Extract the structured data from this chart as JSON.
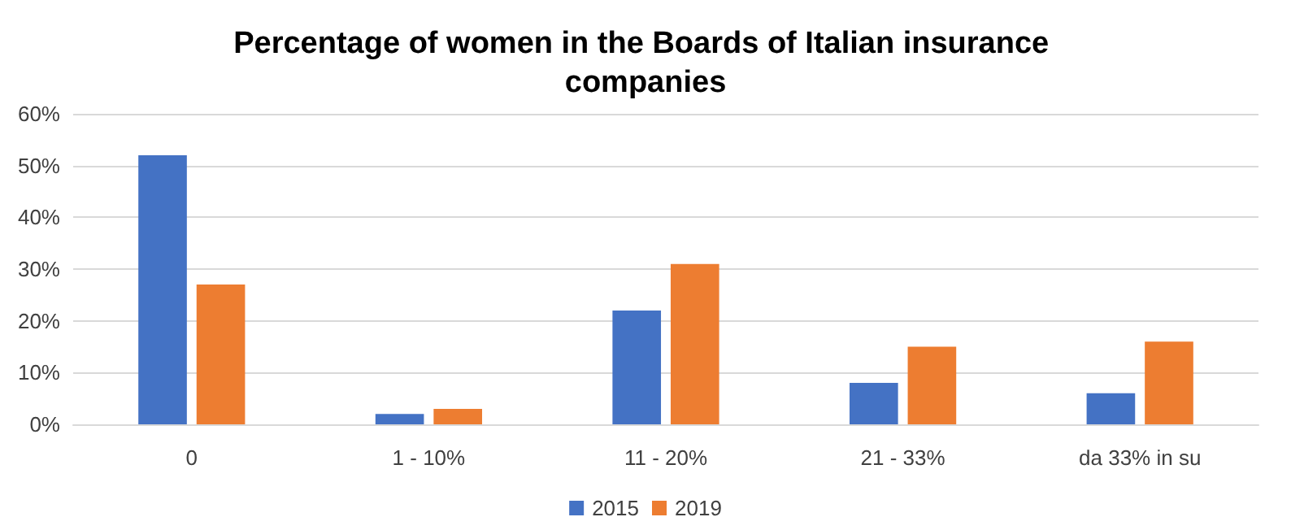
{
  "chart_data": {
    "type": "bar",
    "title": "Percentage of women in the Boards of Italian insurance companies",
    "categories": [
      "0",
      "1 - 10%",
      "11 - 20%",
      "21 - 33%",
      "da 33% in su"
    ],
    "series": [
      {
        "name": "2015",
        "color": "#4472c4",
        "values": [
          52,
          2,
          22,
          8,
          6
        ]
      },
      {
        "name": "2019",
        "color": "#ed7d31",
        "values": [
          27,
          3,
          31,
          15,
          16
        ]
      }
    ],
    "ylim": [
      0,
      60
    ],
    "yticks": [
      {
        "value": 0,
        "label": "0%"
      },
      {
        "value": 10,
        "label": "10%"
      },
      {
        "value": 20,
        "label": "20%"
      },
      {
        "value": 30,
        "label": "30%"
      },
      {
        "value": 40,
        "label": "40%"
      },
      {
        "value": 50,
        "label": "50%"
      },
      {
        "value": 60,
        "label": "60%"
      }
    ],
    "grid": "y",
    "legend": "bottom"
  }
}
